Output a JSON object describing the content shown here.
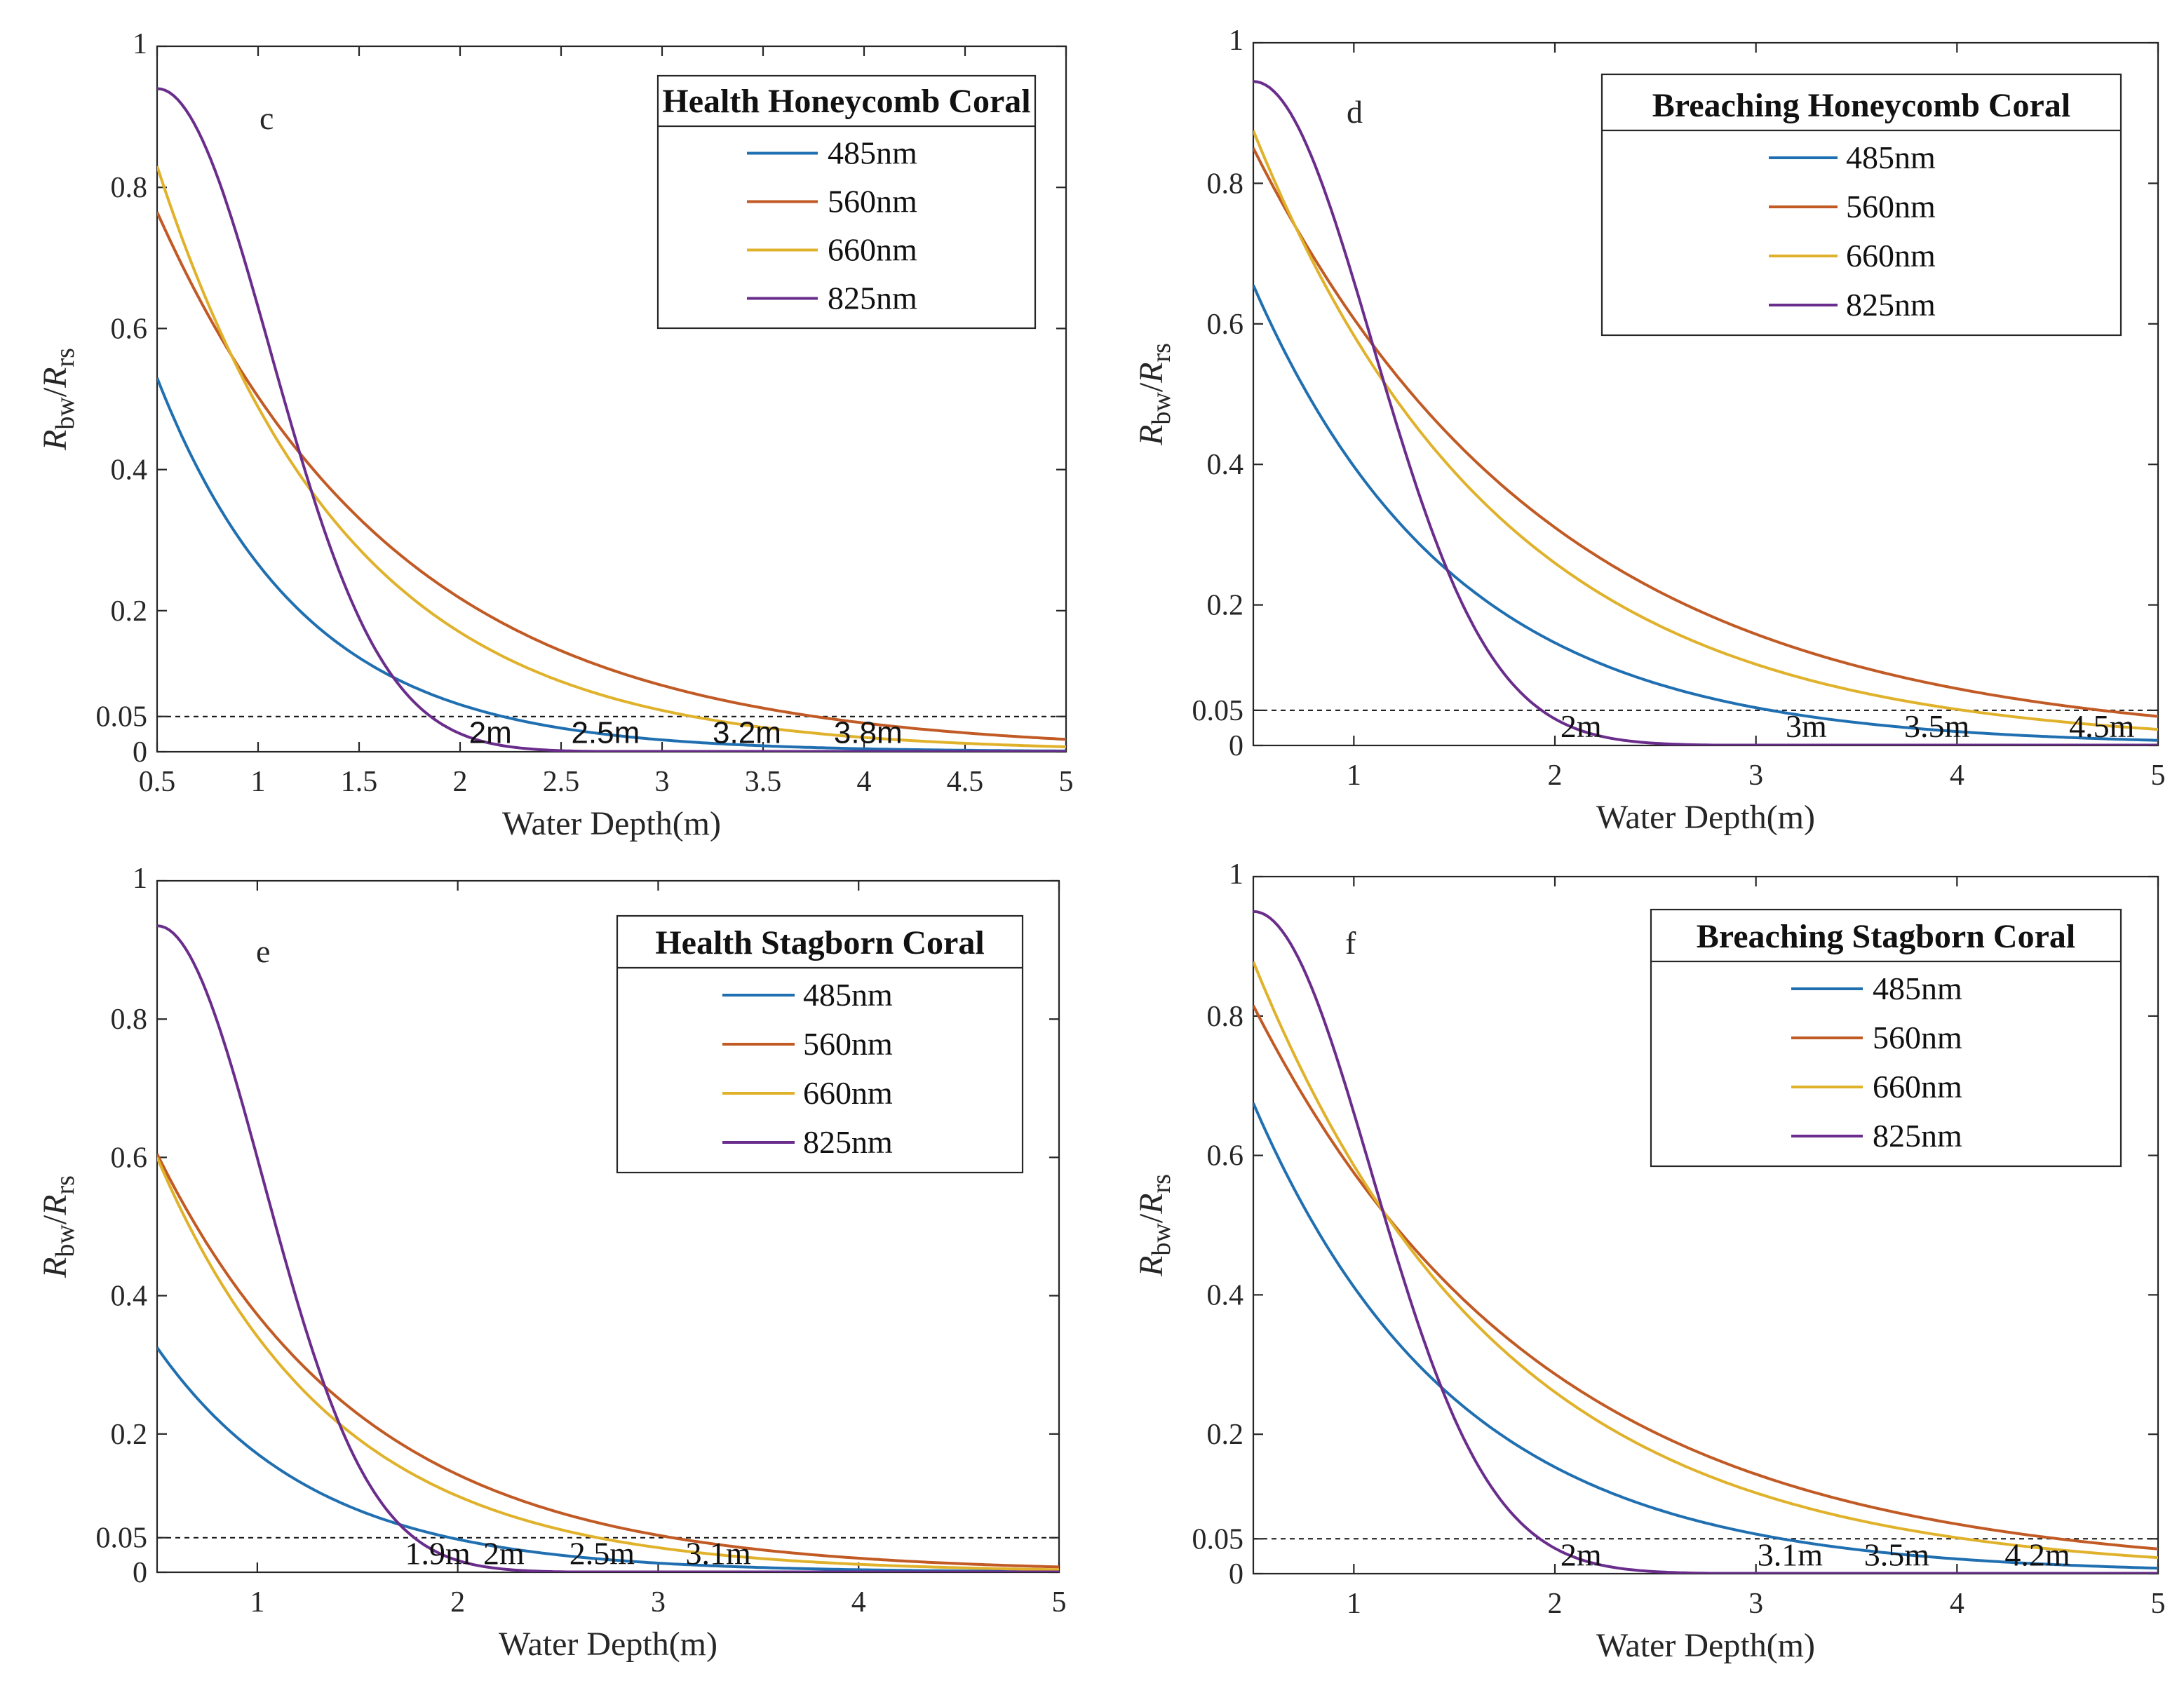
{
  "chart_data": [
    {
      "panel": "c",
      "type": "line",
      "title": "Health Honeycomb Coral",
      "xlabel": "Water Depth(m)",
      "ylabel": "R_bw/R_rs",
      "xlim": [
        0.5,
        5
      ],
      "ylim": [
        0,
        1
      ],
      "x_ticks": [
        0.5,
        1,
        1.5,
        2,
        2.5,
        3,
        3.5,
        4,
        4.5,
        5
      ],
      "x_tick_labels": [
        "0.5",
        "1",
        "1.5",
        "2",
        "2.5",
        "3",
        "3.5",
        "4",
        "4.5",
        "5"
      ],
      "y_ticks": [
        0,
        0.05,
        0.2,
        0.4,
        0.6,
        0.8,
        1
      ],
      "y_tick_labels": [
        "0",
        "0.05",
        "0.2",
        "0.4",
        "0.6",
        "0.8",
        "1"
      ],
      "threshold": 0.05,
      "series": [
        {
          "name": "485nm",
          "color": "#1f6fb1",
          "model": "exp",
          "y0": 0.53,
          "k": 1.38
        },
        {
          "name": "560nm",
          "color": "#c15a24",
          "model": "exp",
          "y0": 0.765,
          "k": 0.838
        },
        {
          "name": "660nm",
          "color": "#e0b22b",
          "model": "exp",
          "y0": 0.83,
          "k": 1.06
        },
        {
          "name": "825nm",
          "color": "#6a2d8c",
          "model": "gauss",
          "y0": 0.94,
          "k": 1.6
        }
      ],
      "depth_annotations": [
        {
          "text": "2m",
          "x": 2.15
        },
        {
          "text": "2.5m",
          "x": 2.72
        },
        {
          "text": "3.2m",
          "x": 3.42
        },
        {
          "text": "3.8m",
          "x": 4.02
        }
      ]
    },
    {
      "panel": "d",
      "type": "line",
      "title": "Breaching Honeycomb Coral",
      "xlabel": "Water Depth(m)",
      "ylabel": "R_bw/R_rs",
      "xlim": [
        0.5,
        5
      ],
      "ylim": [
        0,
        1
      ],
      "x_ticks": [
        1,
        2,
        3,
        4,
        5
      ],
      "x_tick_labels": [
        "1",
        "2",
        "3",
        "4",
        "5"
      ],
      "y_ticks": [
        0,
        0.05,
        0.2,
        0.4,
        0.6,
        0.8,
        1
      ],
      "y_tick_labels": [
        "0",
        "0.05",
        "0.2",
        "0.4",
        "0.6",
        "0.8",
        "1"
      ],
      "threshold": 0.05,
      "series": [
        {
          "name": "485nm",
          "color": "#1f6fb1",
          "model": "exp",
          "y0": 0.655,
          "k": 1.0
        },
        {
          "name": "560nm",
          "color": "#c15a24",
          "model": "exp",
          "y0": 0.85,
          "k": 0.672
        },
        {
          "name": "660nm",
          "color": "#e0b22b",
          "model": "exp",
          "y0": 0.875,
          "k": 0.81
        },
        {
          "name": "825nm",
          "color": "#6a2d8c",
          "model": "gauss",
          "y0": 0.945,
          "k": 1.43
        }
      ],
      "depth_annotations": [
        {
          "text": "2m",
          "x": 2.13
        },
        {
          "text": "3m",
          "x": 3.25
        },
        {
          "text": "3.5m",
          "x": 3.9
        },
        {
          "text": "4.5m",
          "x": 4.72
        }
      ]
    },
    {
      "panel": "e",
      "type": "line",
      "title": "Health Stagborn Coral",
      "xlabel": "Water Depth(m)",
      "ylabel": "R_bw/R_rs",
      "xlim": [
        0.5,
        5
      ],
      "ylim": [
        0,
        1
      ],
      "x_ticks": [
        1,
        2,
        3,
        4,
        5
      ],
      "x_tick_labels": [
        "1",
        "2",
        "3",
        "4",
        "5"
      ],
      "y_ticks": [
        0,
        0.05,
        0.2,
        0.4,
        0.6,
        0.8,
        1
      ],
      "y_tick_labels": [
        "0",
        "0.05",
        "0.2",
        "0.4",
        "0.6",
        "0.8",
        "1"
      ],
      "threshold": 0.05,
      "series": [
        {
          "name": "485nm",
          "color": "#1f6fb1",
          "model": "exp",
          "y0": 0.325,
          "k": 1.28
        },
        {
          "name": "560nm",
          "color": "#c15a24",
          "model": "exp",
          "y0": 0.605,
          "k": 0.97
        },
        {
          "name": "660nm",
          "color": "#e0b22b",
          "model": "exp",
          "y0": 0.6,
          "k": 1.13
        },
        {
          "name": "825nm",
          "color": "#6a2d8c",
          "model": "gauss",
          "y0": 0.935,
          "k": 1.78
        }
      ],
      "depth_annotations": [
        {
          "text": "1.9m",
          "x": 1.9
        },
        {
          "text": "2m",
          "x": 2.23
        },
        {
          "text": "2.5m",
          "x": 2.72
        },
        {
          "text": "3.1m",
          "x": 3.3
        }
      ]
    },
    {
      "panel": "f",
      "type": "line",
      "title": "Breaching Stagborn Coral",
      "xlabel": "Water Depth(m)",
      "ylabel": "R_bw/R_rs",
      "xlim": [
        0.5,
        5
      ],
      "ylim": [
        0,
        1
      ],
      "x_ticks": [
        1,
        2,
        3,
        4,
        5
      ],
      "x_tick_labels": [
        "1",
        "2",
        "3",
        "4",
        "5"
      ],
      "y_ticks": [
        0,
        0.05,
        0.2,
        0.4,
        0.6,
        0.8,
        1
      ],
      "y_tick_labels": [
        "0",
        "0.05",
        "0.2",
        "0.4",
        "0.6",
        "0.8",
        "1"
      ],
      "threshold": 0.05,
      "series": [
        {
          "name": "485nm",
          "color": "#1f6fb1",
          "model": "exp",
          "y0": 0.675,
          "k": 0.99
        },
        {
          "name": "560nm",
          "color": "#c15a24",
          "model": "exp",
          "y0": 0.815,
          "k": 0.697
        },
        {
          "name": "660nm",
          "color": "#e0b22b",
          "model": "exp",
          "y0": 0.878,
          "k": 0.81
        },
        {
          "name": "825nm",
          "color": "#6a2d8c",
          "model": "gauss",
          "y0": 0.95,
          "k": 1.45
        }
      ],
      "depth_annotations": [
        {
          "text": "2m",
          "x": 2.13
        },
        {
          "text": "3.1m",
          "x": 3.17
        },
        {
          "text": "3.5m",
          "x": 3.7
        },
        {
          "text": "4.2m",
          "x": 4.4
        }
      ]
    }
  ]
}
